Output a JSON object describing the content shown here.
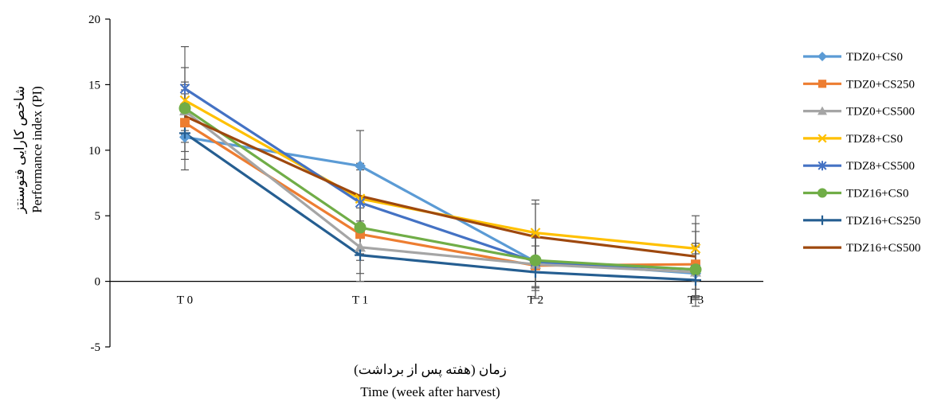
{
  "chart_data": {
    "type": "line",
    "categories": [
      "T 0",
      "T 1",
      "T 2",
      "T 3"
    ],
    "ylabel_fa": "شاخص کارایی فتوسنتز",
    "ylabel_en": "Performance index (PI)",
    "xlabel_fa": "زمان (هفته پس از برداشت)",
    "xlabel_en": "Time (week after harvest)",
    "ylim": [
      -5,
      20
    ],
    "yticks": [
      20,
      15,
      10,
      5,
      0,
      -5
    ],
    "grid": false,
    "legend_position": "right",
    "series": [
      {
        "name": "TDZ0+CS0",
        "color": "#5B9BD5",
        "marker": "diamond",
        "values": [
          11.0,
          8.8,
          1.5,
          0.6
        ],
        "errors": [
          2.5,
          2.7,
          2.0,
          2.0
        ]
      },
      {
        "name": "TDZ0+CS250",
        "color": "#ED7D31",
        "marker": "square",
        "values": [
          12.1,
          3.6,
          1.2,
          1.3
        ],
        "errors": [
          2.2,
          2.0,
          2.5,
          2.5
        ]
      },
      {
        "name": "TDZ0+CS500",
        "color": "#A5A5A5",
        "marker": "triangle",
        "values": [
          13.0,
          2.6,
          1.3,
          0.7
        ],
        "errors": [
          2.0,
          2.0,
          2.0,
          2.0
        ]
      },
      {
        "name": "TDZ8+CS0",
        "color": "#FFC000",
        "marker": "x",
        "values": [
          13.8,
          6.3,
          3.7,
          2.5
        ],
        "errors": [
          2.5,
          2.5,
          2.5,
          2.5
        ]
      },
      {
        "name": "TDZ8+CS500",
        "color": "#4472C4",
        "marker": "star",
        "values": [
          14.7,
          6.0,
          1.5,
          0.9
        ],
        "errors": [
          3.2,
          2.5,
          2.0,
          2.0
        ]
      },
      {
        "name": "TDZ16+CS0",
        "color": "#70AD47",
        "marker": "circle",
        "values": [
          13.2,
          4.1,
          1.6,
          0.9
        ],
        "errors": [
          2.0,
          2.0,
          2.0,
          2.0
        ]
      },
      {
        "name": "TDZ16+CS250",
        "color": "#255E91",
        "marker": "plus",
        "values": [
          11.3,
          2.0,
          0.7,
          0.1
        ],
        "errors": [
          2.0,
          2.0,
          2.0,
          2.0
        ]
      },
      {
        "name": "TDZ16+CS500",
        "color": "#9E480E",
        "marker": "none",
        "values": [
          12.6,
          6.5,
          3.4,
          1.9
        ],
        "errors": [
          2.0,
          2.5,
          2.5,
          2.5
        ]
      }
    ]
  }
}
